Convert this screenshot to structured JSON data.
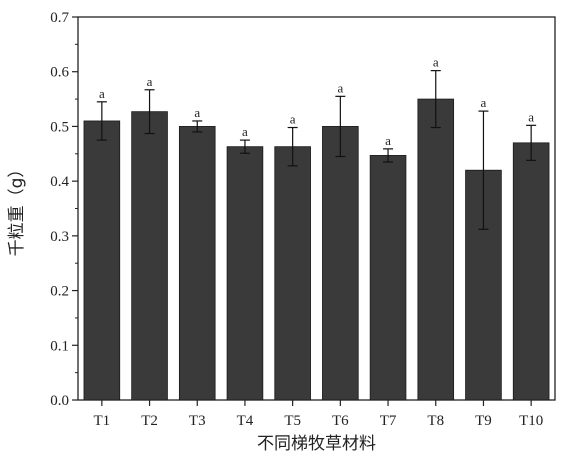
{
  "chart_data": {
    "type": "bar",
    "categories": [
      "T1",
      "T2",
      "T3",
      "T4",
      "T5",
      "T6",
      "T7",
      "T8",
      "T9",
      "T10"
    ],
    "values": [
      0.51,
      0.527,
      0.5,
      0.463,
      0.463,
      0.5,
      0.447,
      0.55,
      0.42,
      0.47
    ],
    "errors": [
      0.035,
      0.04,
      0.01,
      0.012,
      0.035,
      0.055,
      0.012,
      0.052,
      0.108,
      0.032
    ],
    "significance": [
      "a",
      "a",
      "a",
      "a",
      "a",
      "a",
      "a",
      "a",
      "a",
      "a"
    ],
    "xlabel": "不同梯牧草材料",
    "ylabel": "千粒重（g）",
    "ylim": [
      0.0,
      0.7
    ],
    "yticks": [
      "0.0",
      "0.1",
      "0.2",
      "0.3",
      "0.4",
      "0.5",
      "0.6",
      "0.7"
    ],
    "grid": false,
    "bar_color": "#3a3a3a"
  }
}
